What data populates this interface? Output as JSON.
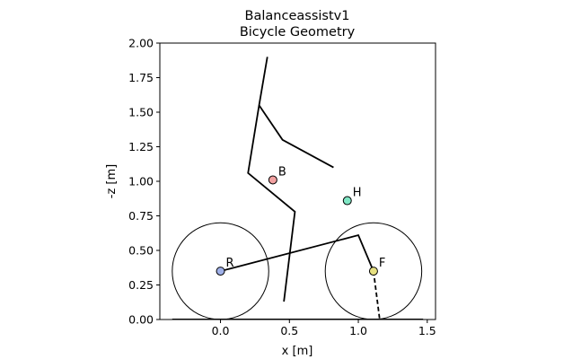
{
  "chart_data": {
    "type": "line",
    "title_line1": "Balanceassistv1",
    "title_line2": "Bicycle Geometry",
    "xlabel": "x [m]",
    "ylabel": "-z [m]",
    "xlim": [
      -0.44,
      1.56
    ],
    "ylim": [
      0.0,
      2.0
    ],
    "aspect": "equal",
    "grid": false,
    "xticks": [
      {
        "value": 0.0,
        "label": "0.0"
      },
      {
        "value": 0.5,
        "label": "0.5"
      },
      {
        "value": 1.0,
        "label": "1.0"
      },
      {
        "value": 1.5,
        "label": "1.5"
      }
    ],
    "yticks": [
      {
        "value": 0.0,
        "label": "0.00"
      },
      {
        "value": 0.25,
        "label": "0.25"
      },
      {
        "value": 0.5,
        "label": "0.50"
      },
      {
        "value": 0.75,
        "label": "0.75"
      },
      {
        "value": 1.0,
        "label": "1.00"
      },
      {
        "value": 1.25,
        "label": "1.25"
      },
      {
        "value": 1.5,
        "label": "1.50"
      },
      {
        "value": 1.75,
        "label": "1.75"
      },
      {
        "value": 2.0,
        "label": "2.00"
      }
    ],
    "ground_line": {
      "x": [
        -0.35,
        1.47
      ],
      "y": [
        0.0,
        0.0
      ]
    },
    "wheels": [
      {
        "name": "rear-wheel",
        "cx": 0.0,
        "cy": 0.35,
        "r": 0.35
      },
      {
        "name": "front-wheel",
        "cx": 1.11,
        "cy": 0.35,
        "r": 0.35
      }
    ],
    "segments": [
      {
        "name": "frame",
        "dashed": false,
        "x": [
          0.0,
          1.0,
          1.11
        ],
        "y": [
          0.35,
          0.61,
          0.35
        ]
      },
      {
        "name": "fork-extension",
        "dashed": true,
        "x": [
          1.11,
          1.155
        ],
        "y": [
          0.35,
          0.0
        ]
      },
      {
        "name": "leg",
        "dashed": false,
        "x": [
          0.46,
          0.54,
          0.2,
          0.28,
          0.34
        ],
        "y": [
          0.13,
          0.78,
          1.06,
          1.55,
          1.9
        ]
      },
      {
        "name": "arm",
        "dashed": false,
        "x": [
          0.28,
          0.45,
          0.82
        ],
        "y": [
          1.55,
          1.3,
          1.1
        ]
      }
    ],
    "points": [
      {
        "label": "R",
        "x": 0.0,
        "y": 0.35,
        "color": "#9fb0e8"
      },
      {
        "label": "B",
        "x": 0.38,
        "y": 1.01,
        "color": "#f2a1a1"
      },
      {
        "label": "H",
        "x": 0.92,
        "y": 0.86,
        "color": "#7fe6c4"
      },
      {
        "label": "F",
        "x": 1.11,
        "y": 0.35,
        "color": "#e6e080"
      }
    ]
  }
}
